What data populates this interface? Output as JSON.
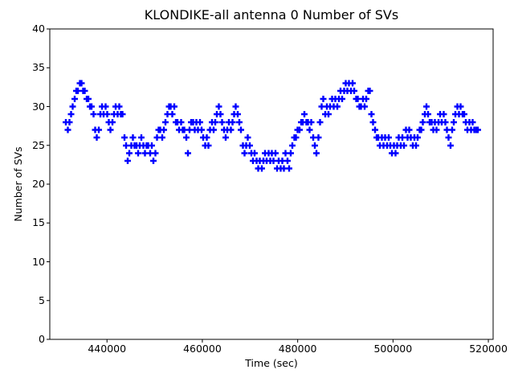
{
  "title": "KLONDIKE-all antenna 0 Number of SVs",
  "chart_data": {
    "type": "scatter",
    "title": "KLONDIKE-all antenna 0 Number of SVs",
    "xlabel": "Time (sec)",
    "ylabel": "Number of SVs",
    "xlim": [
      428000,
      521000
    ],
    "ylim": [
      0,
      40
    ],
    "x_ticks": [
      440000,
      460000,
      480000,
      500000,
      520000
    ],
    "y_ticks": [
      0,
      5,
      10,
      15,
      20,
      25,
      30,
      35,
      40
    ],
    "grid": false,
    "legend": "none",
    "marker": "plus",
    "marker_color": "#0000ff",
    "series_name": "Number of SVs",
    "points": [
      [
        431400,
        28
      ],
      [
        431760,
        27
      ],
      [
        432120,
        28
      ],
      [
        432480,
        29
      ],
      [
        432840,
        30
      ],
      [
        433200,
        31
      ],
      [
        433560,
        32
      ],
      [
        433920,
        32
      ],
      [
        434280,
        33
      ],
      [
        434640,
        33
      ],
      [
        435000,
        32
      ],
      [
        435360,
        32
      ],
      [
        435720,
        31
      ],
      [
        436080,
        31
      ],
      [
        436440,
        30
      ],
      [
        436800,
        30
      ],
      [
        437160,
        29
      ],
      [
        437520,
        27
      ],
      [
        437880,
        26
      ],
      [
        438240,
        27
      ],
      [
        438600,
        29
      ],
      [
        438960,
        30
      ],
      [
        439320,
        29
      ],
      [
        439680,
        30
      ],
      [
        440040,
        29
      ],
      [
        440400,
        28
      ],
      [
        440760,
        27
      ],
      [
        441120,
        28
      ],
      [
        441480,
        29
      ],
      [
        441840,
        30
      ],
      [
        442200,
        29
      ],
      [
        442560,
        30
      ],
      [
        442920,
        29
      ],
      [
        443280,
        29
      ],
      [
        443640,
        26
      ],
      [
        444000,
        25
      ],
      [
        444360,
        23
      ],
      [
        444720,
        24
      ],
      [
        445080,
        25
      ],
      [
        445440,
        26
      ],
      [
        445800,
        25
      ],
      [
        446160,
        25
      ],
      [
        446520,
        24
      ],
      [
        446880,
        25
      ],
      [
        447240,
        26
      ],
      [
        447600,
        25
      ],
      [
        447960,
        24
      ],
      [
        448320,
        25
      ],
      [
        448680,
        25
      ],
      [
        449040,
        24
      ],
      [
        449400,
        25
      ],
      [
        449760,
        23
      ],
      [
        450120,
        24
      ],
      [
        450480,
        26
      ],
      [
        450840,
        27
      ],
      [
        451200,
        27
      ],
      [
        451560,
        26
      ],
      [
        451920,
        27
      ],
      [
        452280,
        28
      ],
      [
        452640,
        29
      ],
      [
        453000,
        30
      ],
      [
        453360,
        30
      ],
      [
        453720,
        29
      ],
      [
        454080,
        30
      ],
      [
        454440,
        28
      ],
      [
        454800,
        28
      ],
      [
        455160,
        27
      ],
      [
        455520,
        28
      ],
      [
        455880,
        27
      ],
      [
        456240,
        27
      ],
      [
        456600,
        26
      ],
      [
        456960,
        24
      ],
      [
        457320,
        27
      ],
      [
        457680,
        28
      ],
      [
        458040,
        28
      ],
      [
        458400,
        27
      ],
      [
        458760,
        28
      ],
      [
        459120,
        27
      ],
      [
        459480,
        28
      ],
      [
        459840,
        27
      ],
      [
        460200,
        26
      ],
      [
        460560,
        25
      ],
      [
        460920,
        26
      ],
      [
        461280,
        25
      ],
      [
        461640,
        27
      ],
      [
        462000,
        28
      ],
      [
        462360,
        27
      ],
      [
        462720,
        28
      ],
      [
        463080,
        29
      ],
      [
        463440,
        30
      ],
      [
        463800,
        29
      ],
      [
        464160,
        28
      ],
      [
        464520,
        27
      ],
      [
        464880,
        26
      ],
      [
        465240,
        27
      ],
      [
        465600,
        28
      ],
      [
        465960,
        27
      ],
      [
        466320,
        28
      ],
      [
        466680,
        29
      ],
      [
        467040,
        30
      ],
      [
        467400,
        29
      ],
      [
        467760,
        28
      ],
      [
        468120,
        27
      ],
      [
        468480,
        25
      ],
      [
        468840,
        24
      ],
      [
        469200,
        25
      ],
      [
        469560,
        26
      ],
      [
        469920,
        25
      ],
      [
        470280,
        24
      ],
      [
        470640,
        23
      ],
      [
        471000,
        24
      ],
      [
        471360,
        23
      ],
      [
        471720,
        22
      ],
      [
        472080,
        23
      ],
      [
        472440,
        22
      ],
      [
        472800,
        23
      ],
      [
        473160,
        24
      ],
      [
        473520,
        23
      ],
      [
        473880,
        24
      ],
      [
        474240,
        23
      ],
      [
        474600,
        24
      ],
      [
        474960,
        23
      ],
      [
        475320,
        24
      ],
      [
        475680,
        22
      ],
      [
        476040,
        23
      ],
      [
        476400,
        22
      ],
      [
        476760,
        23
      ],
      [
        477120,
        22
      ],
      [
        477480,
        24
      ],
      [
        477840,
        23
      ],
      [
        478200,
        22
      ],
      [
        478560,
        24
      ],
      [
        478920,
        25
      ],
      [
        479280,
        26
      ],
      [
        479640,
        26
      ],
      [
        480000,
        27
      ],
      [
        480360,
        27
      ],
      [
        480720,
        28
      ],
      [
        481080,
        28
      ],
      [
        481440,
        29
      ],
      [
        481800,
        28
      ],
      [
        482160,
        28
      ],
      [
        482520,
        27
      ],
      [
        482880,
        28
      ],
      [
        483240,
        26
      ],
      [
        483600,
        25
      ],
      [
        483960,
        24
      ],
      [
        484320,
        26
      ],
      [
        484680,
        28
      ],
      [
        485040,
        30
      ],
      [
        485400,
        31
      ],
      [
        485760,
        29
      ],
      [
        486120,
        30
      ],
      [
        486480,
        29
      ],
      [
        486840,
        30
      ],
      [
        487200,
        31
      ],
      [
        487560,
        30
      ],
      [
        487920,
        31
      ],
      [
        488280,
        30
      ],
      [
        488640,
        31
      ],
      [
        489000,
        32
      ],
      [
        489360,
        31
      ],
      [
        489720,
        32
      ],
      [
        490080,
        33
      ],
      [
        490440,
        32
      ],
      [
        490800,
        33
      ],
      [
        491160,
        32
      ],
      [
        491520,
        33
      ],
      [
        491880,
        32
      ],
      [
        492240,
        31
      ],
      [
        492600,
        31
      ],
      [
        492960,
        30
      ],
      [
        493320,
        30
      ],
      [
        493680,
        31
      ],
      [
        494040,
        30
      ],
      [
        494400,
        31
      ],
      [
        494760,
        32
      ],
      [
        495120,
        32
      ],
      [
        495480,
        29
      ],
      [
        495840,
        28
      ],
      [
        496200,
        27
      ],
      [
        496560,
        26
      ],
      [
        496920,
        26
      ],
      [
        497280,
        25
      ],
      [
        497640,
        26
      ],
      [
        498000,
        25
      ],
      [
        498360,
        26
      ],
      [
        498720,
        25
      ],
      [
        499080,
        26
      ],
      [
        499440,
        25
      ],
      [
        499800,
        24
      ],
      [
        500160,
        25
      ],
      [
        500520,
        24
      ],
      [
        500880,
        25
      ],
      [
        501240,
        26
      ],
      [
        501600,
        25
      ],
      [
        501960,
        26
      ],
      [
        502320,
        25
      ],
      [
        502680,
        27
      ],
      [
        503040,
        26
      ],
      [
        503400,
        27
      ],
      [
        503760,
        26
      ],
      [
        504120,
        25
      ],
      [
        504480,
        26
      ],
      [
        504840,
        25
      ],
      [
        505200,
        26
      ],
      [
        505560,
        27
      ],
      [
        505920,
        27
      ],
      [
        506280,
        28
      ],
      [
        506640,
        29
      ],
      [
        507000,
        30
      ],
      [
        507360,
        29
      ],
      [
        507720,
        28
      ],
      [
        508080,
        28
      ],
      [
        508440,
        27
      ],
      [
        508800,
        28
      ],
      [
        509160,
        27
      ],
      [
        509520,
        28
      ],
      [
        509880,
        29
      ],
      [
        510240,
        28
      ],
      [
        510600,
        29
      ],
      [
        510960,
        28
      ],
      [
        511320,
        27
      ],
      [
        511680,
        26
      ],
      [
        512040,
        25
      ],
      [
        512400,
        27
      ],
      [
        512760,
        28
      ],
      [
        513120,
        29
      ],
      [
        513480,
        30
      ],
      [
        513840,
        29
      ],
      [
        514200,
        30
      ],
      [
        514560,
        29
      ],
      [
        514920,
        29
      ],
      [
        515280,
        28
      ],
      [
        515640,
        27
      ],
      [
        516000,
        28
      ],
      [
        516360,
        27
      ],
      [
        516720,
        28
      ],
      [
        517080,
        27
      ],
      [
        517440,
        27
      ],
      [
        517800,
        27
      ]
    ]
  }
}
